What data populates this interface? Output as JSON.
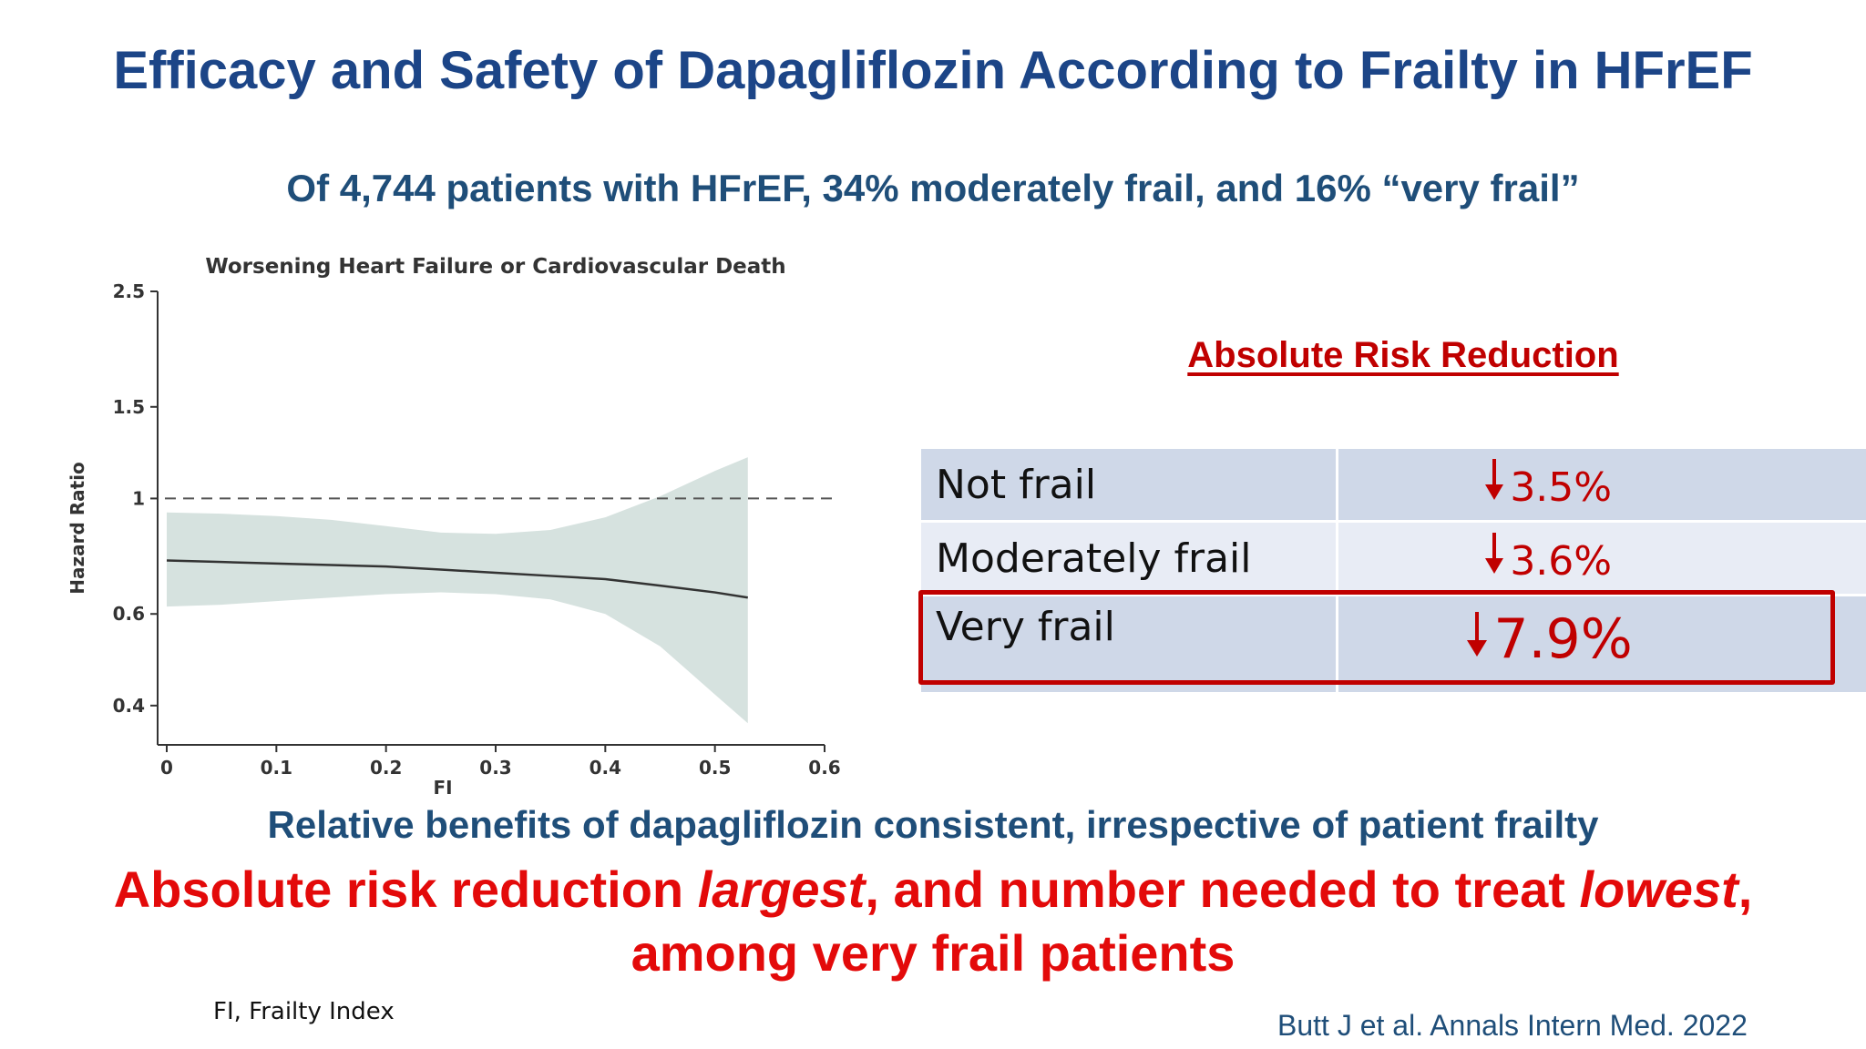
{
  "slide": {
    "title": "Efficacy and Safety of Dapagliflozin According to Frailty in HFrEF",
    "subtitle": "Of 4,744 patients with HFrEF, 34% moderately frail, and 16% “very frail”",
    "note_line1": "Relative benefits of dapagliflozin consistent, irrespective of patient frailty",
    "note_line2_parts": [
      "Absolute risk reduction ",
      "largest",
      ", and number needed to treat ",
      "lowest",
      ","
    ],
    "note_line3": "among very frail patients",
    "footnote": "FI, Frailty Index",
    "citation": "Butt J et al. Annals Intern Med. 2022"
  },
  "arr_table": {
    "heading": "Absolute Risk Reduction",
    "rows": [
      {
        "label": "Not frail",
        "value": "3.5%"
      },
      {
        "label": "Moderately frail",
        "value": "3.6%"
      },
      {
        "label": "Very frail",
        "value": "7.9%",
        "highlighted": true
      }
    ],
    "arrow_icon": "down-arrow-icon",
    "accent_color": "#c00000"
  },
  "chart_data": {
    "type": "line",
    "title": "Worsening Heart Failure or Cardiovascular Death",
    "xlabel": "FI",
    "ylabel": "Hazard Ratio",
    "y_scale": "log",
    "xlim": [
      0,
      0.6
    ],
    "ylim": [
      0.35,
      2.5
    ],
    "x_ticks": [
      "0",
      "0.1",
      "0.2",
      "0.3",
      "0.4",
      "0.5",
      "0.6"
    ],
    "y_ticks": [
      "0.4",
      "0.6",
      "1",
      "1.5",
      "2.5"
    ],
    "reference_line": 1,
    "series": [
      {
        "x": [
          0,
          0.05,
          0.1,
          0.15,
          0.2,
          0.25,
          0.3,
          0.35,
          0.4,
          0.45,
          0.5,
          0.53
        ],
        "y": [
          0.76,
          0.755,
          0.75,
          0.745,
          0.74,
          0.73,
          0.72,
          0.71,
          0.7,
          0.68,
          0.66,
          0.645
        ],
        "lower": [
          0.62,
          0.625,
          0.635,
          0.645,
          0.655,
          0.66,
          0.655,
          0.64,
          0.6,
          0.52,
          0.42,
          0.37
        ],
        "upper": [
          0.94,
          0.935,
          0.925,
          0.91,
          0.885,
          0.86,
          0.855,
          0.87,
          0.92,
          1.01,
          1.13,
          1.2
        ]
      }
    ],
    "colors": {
      "band": "#d6e2df",
      "line": "#333333",
      "reference": "#555555"
    }
  }
}
